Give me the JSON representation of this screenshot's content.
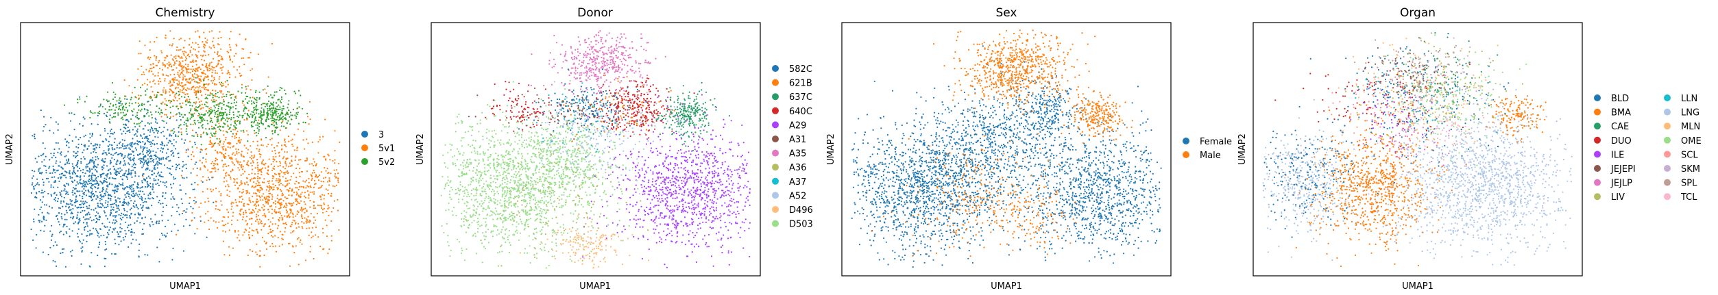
{
  "chart_data": [
    {
      "type": "scatter",
      "title": "Chemistry",
      "xlabel": "UMAP1",
      "ylabel": "UMAP2",
      "ticks": false,
      "legend_position": "right",
      "categories": [
        "3",
        "5v1",
        "5v2"
      ],
      "colors": [
        "#1f77b4",
        "#ff7f0e",
        "#2ca02c"
      ],
      "clusters": [
        {
          "category": "3",
          "cx": 0.25,
          "cy": 0.35,
          "sx": 0.13,
          "sy": 0.13,
          "n": 1500
        },
        {
          "category": "3",
          "cx": 0.4,
          "cy": 0.5,
          "sx": 0.06,
          "sy": 0.06,
          "n": 250
        },
        {
          "category": "5v1",
          "cx": 0.78,
          "cy": 0.33,
          "sx": 0.11,
          "sy": 0.12,
          "n": 1100
        },
        {
          "category": "5v1",
          "cx": 0.52,
          "cy": 0.8,
          "sx": 0.08,
          "sy": 0.08,
          "n": 650
        },
        {
          "category": "5v1",
          "cx": 0.62,
          "cy": 0.5,
          "sx": 0.05,
          "sy": 0.05,
          "n": 150
        },
        {
          "category": "5v2",
          "cx": 0.76,
          "cy": 0.64,
          "sx": 0.05,
          "sy": 0.04,
          "n": 300
        },
        {
          "category": "5v2",
          "cx": 0.58,
          "cy": 0.64,
          "sx": 0.06,
          "sy": 0.05,
          "n": 300
        },
        {
          "category": "5v2",
          "cx": 0.32,
          "cy": 0.66,
          "sx": 0.06,
          "sy": 0.04,
          "n": 150
        }
      ]
    },
    {
      "type": "scatter",
      "title": "Donor",
      "xlabel": "UMAP1",
      "ylabel": "UMAP2",
      "ticks": false,
      "legend_position": "right",
      "categories": [
        "582C",
        "621B",
        "637C",
        "640C",
        "A29",
        "A31",
        "A35",
        "A36",
        "A37",
        "A52",
        "D496",
        "D503"
      ],
      "colors": [
        "#1f77b4",
        "#ff7f0e",
        "#279e68",
        "#d62728",
        "#aa40fc",
        "#8c564b",
        "#e377c2",
        "#b5bd61",
        "#17becf",
        "#aec7e8",
        "#ffbb78",
        "#98df8a"
      ],
      "clusters": [
        {
          "category": "D503",
          "cx": 0.25,
          "cy": 0.35,
          "sx": 0.13,
          "sy": 0.13,
          "n": 1500
        },
        {
          "category": "D503",
          "cx": 0.42,
          "cy": 0.48,
          "sx": 0.07,
          "sy": 0.07,
          "n": 300
        },
        {
          "category": "A29",
          "cx": 0.78,
          "cy": 0.33,
          "sx": 0.11,
          "sy": 0.12,
          "n": 1100
        },
        {
          "category": "A35",
          "cx": 0.52,
          "cy": 0.84,
          "sx": 0.07,
          "sy": 0.06,
          "n": 450
        },
        {
          "category": "640C",
          "cx": 0.62,
          "cy": 0.66,
          "sx": 0.05,
          "sy": 0.05,
          "n": 300
        },
        {
          "category": "640C",
          "cx": 0.28,
          "cy": 0.66,
          "sx": 0.05,
          "sy": 0.04,
          "n": 100
        },
        {
          "category": "637C",
          "cx": 0.78,
          "cy": 0.64,
          "sx": 0.04,
          "sy": 0.04,
          "n": 250
        },
        {
          "category": "582C",
          "cx": 0.48,
          "cy": 0.66,
          "sx": 0.07,
          "sy": 0.05,
          "n": 180
        },
        {
          "category": "A52",
          "cx": 0.5,
          "cy": 0.55,
          "sx": 0.1,
          "sy": 0.08,
          "n": 200
        },
        {
          "category": "D496",
          "cx": 0.48,
          "cy": 0.12,
          "sx": 0.06,
          "sy": 0.04,
          "n": 150
        },
        {
          "category": "A36",
          "cx": 0.4,
          "cy": 0.3,
          "sx": 0.1,
          "sy": 0.1,
          "n": 100
        },
        {
          "category": "A31",
          "cx": 0.4,
          "cy": 0.65,
          "sx": 0.1,
          "sy": 0.05,
          "n": 80
        },
        {
          "category": "621B",
          "cx": 0.55,
          "cy": 0.65,
          "sx": 0.08,
          "sy": 0.06,
          "n": 60
        },
        {
          "category": "A37",
          "cx": 0.45,
          "cy": 0.62,
          "sx": 0.08,
          "sy": 0.06,
          "n": 40
        }
      ]
    },
    {
      "type": "scatter",
      "title": "Sex",
      "xlabel": "UMAP1",
      "ylabel": "UMAP2",
      "ticks": false,
      "legend_position": "right",
      "categories": [
        "Female",
        "Male"
      ],
      "colors": [
        "#1f77b4",
        "#ff7f0e"
      ],
      "clusters": [
        {
          "category": "Female",
          "cx": 0.25,
          "cy": 0.35,
          "sx": 0.13,
          "sy": 0.13,
          "n": 1500
        },
        {
          "category": "Female",
          "cx": 0.78,
          "cy": 0.33,
          "sx": 0.11,
          "sy": 0.12,
          "n": 1100
        },
        {
          "category": "Female",
          "cx": 0.5,
          "cy": 0.55,
          "sx": 0.1,
          "sy": 0.1,
          "n": 600
        },
        {
          "category": "Female",
          "cx": 0.62,
          "cy": 0.66,
          "sx": 0.05,
          "sy": 0.05,
          "n": 200
        },
        {
          "category": "Male",
          "cx": 0.52,
          "cy": 0.82,
          "sx": 0.08,
          "sy": 0.07,
          "n": 700
        },
        {
          "category": "Male",
          "cx": 0.78,
          "cy": 0.63,
          "sx": 0.04,
          "sy": 0.04,
          "n": 250
        },
        {
          "category": "Male",
          "cx": 0.42,
          "cy": 0.3,
          "sx": 0.1,
          "sy": 0.1,
          "n": 250
        },
        {
          "category": "Male",
          "cx": 0.58,
          "cy": 0.22,
          "sx": 0.06,
          "sy": 0.06,
          "n": 100
        }
      ]
    },
    {
      "type": "scatter",
      "title": "Organ",
      "xlabel": "UMAP1",
      "ylabel": "UMAP2",
      "ticks": false,
      "legend_position": "right",
      "categories": [
        "BLD",
        "BMA",
        "CAE",
        "DUO",
        "ILE",
        "JEJEPI",
        "JEJLP",
        "LIV",
        "LLN",
        "LNG",
        "MLN",
        "OME",
        "SCL",
        "SKM",
        "SPL",
        "TCL"
      ],
      "colors": [
        "#1f77b4",
        "#ff7f0e",
        "#279e68",
        "#d62728",
        "#aa40fc",
        "#8c564b",
        "#e377c2",
        "#b5bd61",
        "#17becf",
        "#aec7e8",
        "#ffbb78",
        "#98df8a",
        "#ff9896",
        "#c5b0d5",
        "#c49c94",
        "#f7b6d2"
      ],
      "clusters": [
        {
          "category": "LNG",
          "cx": 0.7,
          "cy": 0.36,
          "sx": 0.13,
          "sy": 0.13,
          "n": 1400
        },
        {
          "category": "LNG",
          "cx": 0.15,
          "cy": 0.36,
          "sx": 0.07,
          "sy": 0.1,
          "n": 400
        },
        {
          "category": "BMA",
          "cx": 0.36,
          "cy": 0.35,
          "sx": 0.09,
          "sy": 0.11,
          "n": 800
        },
        {
          "category": "BMA",
          "cx": 0.8,
          "cy": 0.64,
          "sx": 0.04,
          "sy": 0.04,
          "n": 150
        },
        {
          "category": "BLD",
          "cx": 0.15,
          "cy": 0.42,
          "sx": 0.08,
          "sy": 0.1,
          "n": 200
        },
        {
          "category": "BLD",
          "cx": 0.5,
          "cy": 0.7,
          "sx": 0.12,
          "sy": 0.1,
          "n": 250
        },
        {
          "category": "MLN",
          "cx": 0.52,
          "cy": 0.7,
          "sx": 0.1,
          "sy": 0.1,
          "n": 200
        },
        {
          "category": "OME",
          "cx": 0.6,
          "cy": 0.7,
          "sx": 0.08,
          "sy": 0.08,
          "n": 150
        },
        {
          "category": "LIV",
          "cx": 0.55,
          "cy": 0.75,
          "sx": 0.1,
          "sy": 0.08,
          "n": 120
        },
        {
          "category": "SPL",
          "cx": 0.5,
          "cy": 0.8,
          "sx": 0.07,
          "sy": 0.06,
          "n": 120
        },
        {
          "category": "DUO",
          "cx": 0.4,
          "cy": 0.7,
          "sx": 0.1,
          "sy": 0.08,
          "n": 100
        },
        {
          "category": "JEJLP",
          "cx": 0.48,
          "cy": 0.55,
          "sx": 0.06,
          "sy": 0.05,
          "n": 60
        },
        {
          "category": "CAE",
          "cx": 0.55,
          "cy": 0.8,
          "sx": 0.08,
          "sy": 0.06,
          "n": 60
        },
        {
          "category": "LLN",
          "cx": 0.45,
          "cy": 0.72,
          "sx": 0.08,
          "sy": 0.06,
          "n": 40
        },
        {
          "category": "SKM",
          "cx": 0.6,
          "cy": 0.8,
          "sx": 0.06,
          "sy": 0.06,
          "n": 40
        },
        {
          "category": "JEJEPI",
          "cx": 0.46,
          "cy": 0.8,
          "sx": 0.05,
          "sy": 0.04,
          "n": 40
        },
        {
          "category": "ILE",
          "cx": 0.4,
          "cy": 0.62,
          "sx": 0.06,
          "sy": 0.05,
          "n": 40
        },
        {
          "category": "SCL",
          "cx": 0.35,
          "cy": 0.66,
          "sx": 0.06,
          "sy": 0.05,
          "n": 40
        },
        {
          "category": "TCL",
          "cx": 0.55,
          "cy": 0.58,
          "sx": 0.06,
          "sy": 0.05,
          "n": 40
        }
      ]
    }
  ]
}
